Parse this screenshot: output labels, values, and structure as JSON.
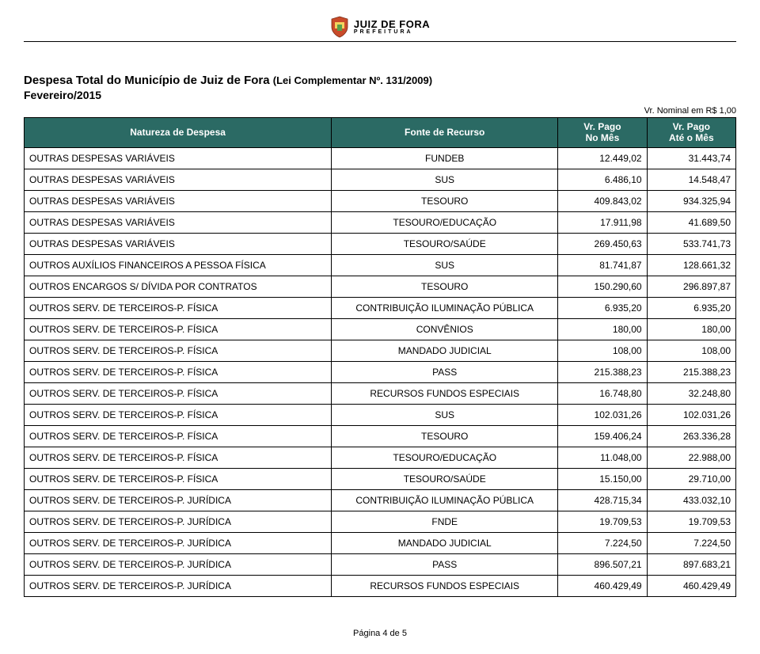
{
  "logo": {
    "city": "JUIZ DE FORA",
    "sub": "PREFEITURA"
  },
  "title": {
    "main": "Despesa Total do Município de Juiz de Fora ",
    "law": "(Lei Complementar Nº. 131/2009)",
    "period": "Fevereiro/2015",
    "unit_note": "Vr. Nominal em R$ 1,00"
  },
  "table": {
    "header_color": "#2b6a64",
    "header_text_color": "#ffffff",
    "border_color": "#000000",
    "columns": {
      "natureza": "Natureza de Despesa",
      "fonte": "Fonte de Recurso",
      "pago_mes_line1": "Vr. Pago",
      "pago_mes_line2": "No Mês",
      "pago_ate_line1": "Vr. Pago",
      "pago_ate_line2": "Até o Mês"
    },
    "rows": [
      {
        "natureza": "OUTRAS DESPESAS VARIÁVEIS",
        "fonte": "FUNDEB",
        "mes": "12.449,02",
        "ate": "31.443,74"
      },
      {
        "natureza": "OUTRAS DESPESAS VARIÁVEIS",
        "fonte": "SUS",
        "mes": "6.486,10",
        "ate": "14.548,47"
      },
      {
        "natureza": "OUTRAS DESPESAS VARIÁVEIS",
        "fonte": "TESOURO",
        "mes": "409.843,02",
        "ate": "934.325,94"
      },
      {
        "natureza": "OUTRAS DESPESAS VARIÁVEIS",
        "fonte": "TESOURO/EDUCAÇÃO",
        "mes": "17.911,98",
        "ate": "41.689,50"
      },
      {
        "natureza": "OUTRAS DESPESAS VARIÁVEIS",
        "fonte": "TESOURO/SAÚDE",
        "mes": "269.450,63",
        "ate": "533.741,73"
      },
      {
        "natureza": "OUTROS AUXÍLIOS FINANCEIROS A PESSOA FÍSICA",
        "fonte": "SUS",
        "mes": "81.741,87",
        "ate": "128.661,32"
      },
      {
        "natureza": "OUTROS ENCARGOS S/ DÍVIDA POR CONTRATOS",
        "fonte": "TESOURO",
        "mes": "150.290,60",
        "ate": "296.897,87"
      },
      {
        "natureza": "OUTROS SERV. DE TERCEIROS-P. FÍSICA",
        "fonte": "CONTRIBUIÇÃO ILUMINAÇÃO PÚBLICA",
        "mes": "6.935,20",
        "ate": "6.935,20"
      },
      {
        "natureza": "OUTROS SERV. DE TERCEIROS-P. FÍSICA",
        "fonte": "CONVÊNIOS",
        "mes": "180,00",
        "ate": "180,00"
      },
      {
        "natureza": "OUTROS SERV. DE TERCEIROS-P. FÍSICA",
        "fonte": "MANDADO JUDICIAL",
        "mes": "108,00",
        "ate": "108,00"
      },
      {
        "natureza": "OUTROS SERV. DE TERCEIROS-P. FÍSICA",
        "fonte": "PASS",
        "mes": "215.388,23",
        "ate": "215.388,23"
      },
      {
        "natureza": "OUTROS SERV. DE TERCEIROS-P. FÍSICA",
        "fonte": "RECURSOS FUNDOS ESPECIAIS",
        "mes": "16.748,80",
        "ate": "32.248,80"
      },
      {
        "natureza": "OUTROS SERV. DE TERCEIROS-P. FÍSICA",
        "fonte": "SUS",
        "mes": "102.031,26",
        "ate": "102.031,26"
      },
      {
        "natureza": "OUTROS SERV. DE TERCEIROS-P. FÍSICA",
        "fonte": "TESOURO",
        "mes": "159.406,24",
        "ate": "263.336,28"
      },
      {
        "natureza": "OUTROS SERV. DE TERCEIROS-P. FÍSICA",
        "fonte": "TESOURO/EDUCAÇÃO",
        "mes": "11.048,00",
        "ate": "22.988,00"
      },
      {
        "natureza": "OUTROS SERV. DE TERCEIROS-P. FÍSICA",
        "fonte": "TESOURO/SAÚDE",
        "mes": "15.150,00",
        "ate": "29.710,00"
      },
      {
        "natureza": "OUTROS SERV. DE TERCEIROS-P. JURÍDICA",
        "fonte": "CONTRIBUIÇÃO ILUMINAÇÃO PÚBLICA",
        "mes": "428.715,34",
        "ate": "433.032,10"
      },
      {
        "natureza": "OUTROS SERV. DE TERCEIROS-P. JURÍDICA",
        "fonte": "FNDE",
        "mes": "19.709,53",
        "ate": "19.709,53"
      },
      {
        "natureza": "OUTROS SERV. DE TERCEIROS-P. JURÍDICA",
        "fonte": "MANDADO JUDICIAL",
        "mes": "7.224,50",
        "ate": "7.224,50"
      },
      {
        "natureza": "OUTROS SERV. DE TERCEIROS-P. JURÍDICA",
        "fonte": "PASS",
        "mes": "896.507,21",
        "ate": "897.683,21"
      },
      {
        "natureza": "OUTROS SERV. DE TERCEIROS-P. JURÍDICA",
        "fonte": "RECURSOS FUNDOS ESPECIAIS",
        "mes": "460.429,49",
        "ate": "460.429,49"
      }
    ]
  },
  "footer": {
    "page": "Página 4 de 5"
  }
}
